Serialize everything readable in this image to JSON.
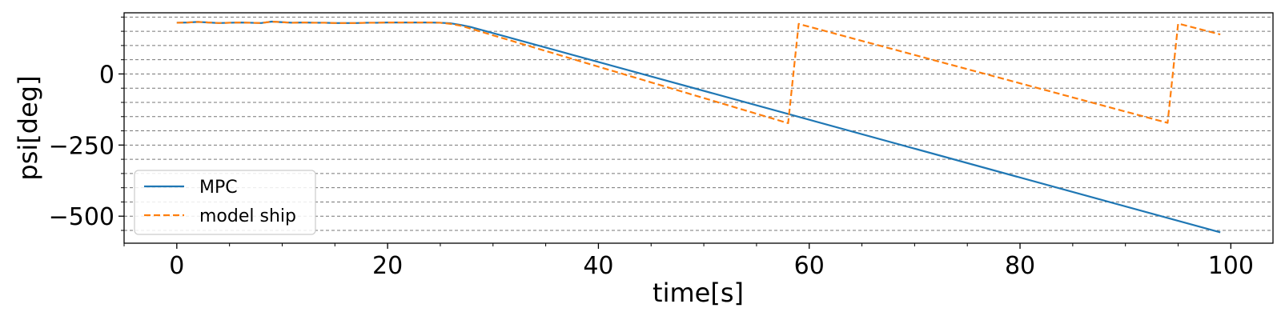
{
  "chart_data": {
    "type": "line",
    "title": "",
    "xlabel": "time[s]",
    "ylabel": "psi[deg]",
    "xlim": [
      -5,
      104
    ],
    "ylim": [
      -595,
      215
    ],
    "x_ticks": [
      0,
      20,
      40,
      60,
      80,
      100
    ],
    "y_ticks": [
      0,
      -250,
      -500
    ],
    "grid": "horizontal dashed",
    "legend_position": "lower-left",
    "series": [
      {
        "name": "MPC",
        "color": "#1f77b4",
        "style": "solid",
        "x": [
          0,
          1,
          2,
          3,
          4,
          5,
          6,
          7,
          8,
          9,
          10,
          11,
          12,
          13,
          14,
          15,
          16,
          17,
          18,
          19,
          20,
          21,
          22,
          23,
          24,
          25,
          26,
          27,
          28,
          99
        ],
        "y": [
          180,
          181,
          183,
          181,
          179,
          180,
          181,
          180,
          179,
          184,
          182,
          180,
          181,
          180,
          180,
          179,
          179,
          179,
          180,
          180,
          181,
          181,
          181,
          181,
          181,
          180,
          178,
          172,
          164,
          -557
        ]
      },
      {
        "name": "model ship",
        "color": "#ff7f0e",
        "style": "dashed",
        "x": [
          0,
          1,
          2,
          3,
          4,
          5,
          6,
          7,
          8,
          9,
          10,
          11,
          12,
          13,
          14,
          15,
          16,
          17,
          18,
          19,
          20,
          21,
          22,
          23,
          24,
          25,
          26,
          27,
          28,
          58,
          59,
          94,
          95,
          99
        ],
        "y": [
          180,
          181,
          183,
          181,
          179,
          180,
          181,
          180,
          179,
          184,
          182,
          180,
          181,
          180,
          180,
          179,
          179,
          179,
          180,
          180,
          181,
          181,
          181,
          181,
          181,
          180,
          176,
          169,
          158,
          -173,
          176,
          -172,
          177,
          139
        ]
      }
    ]
  }
}
